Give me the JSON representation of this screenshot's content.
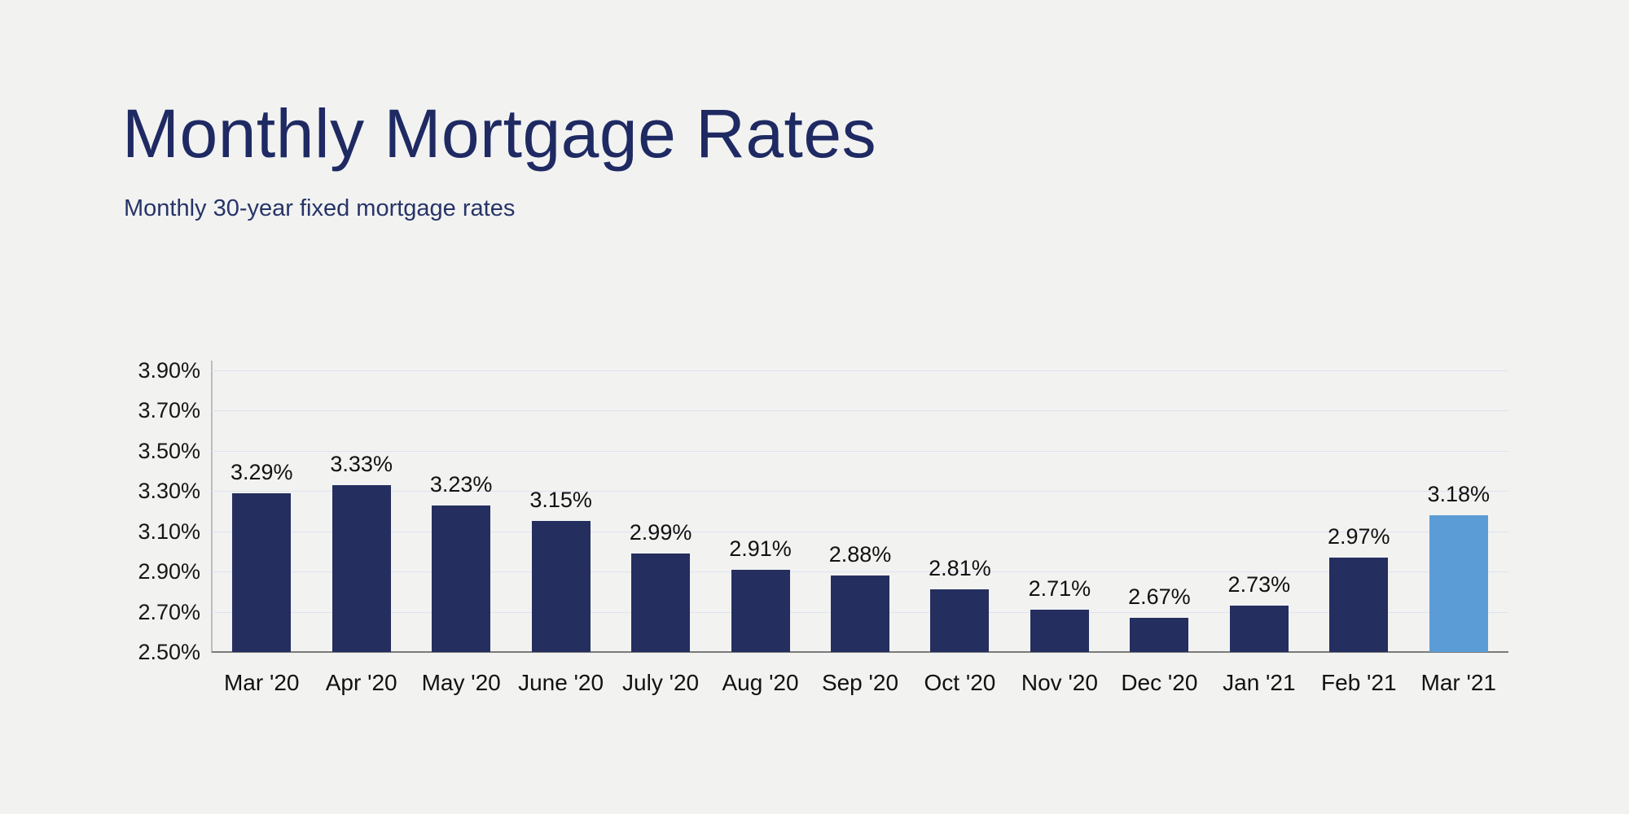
{
  "page": {
    "title": "Monthly Mortgage Rates",
    "subtitle": "Monthly 30-year fixed mortgage rates"
  },
  "chart_data": {
    "type": "bar",
    "title": "Monthly Mortgage Rates",
    "subtitle": "Monthly 30-year fixed mortgage rates",
    "categories": [
      "Mar '20",
      "Apr '20",
      "May '20",
      "June '20",
      "July '20",
      "Aug '20",
      "Sep '20",
      "Oct '20",
      "Nov '20",
      "Dec '20",
      "Jan '21",
      "Feb '21",
      "Mar '21"
    ],
    "values": [
      3.29,
      3.33,
      3.23,
      3.15,
      2.99,
      2.91,
      2.88,
      2.81,
      2.71,
      2.67,
      2.73,
      2.97,
      3.18
    ],
    "data_labels": [
      "3.29%",
      "3.33%",
      "3.23%",
      "3.15%",
      "2.99%",
      "2.91%",
      "2.88%",
      "2.81%",
      "2.71%",
      "2.67%",
      "2.73%",
      "2.97%",
      "3.18%"
    ],
    "xlabel": "",
    "ylabel": "",
    "ylim": [
      2.5,
      3.9
    ],
    "ytick_step": 0.2,
    "ytick_labels": [
      "2.50%",
      "2.70%",
      "2.90%",
      "3.10%",
      "3.30%",
      "3.50%",
      "3.70%",
      "3.90%"
    ],
    "grid": true,
    "legend": "none",
    "colors": {
      "background": "#f2f2f1",
      "title": "#1f2a63",
      "subtitle": "#273468",
      "bar": "#242e5f",
      "highlight_bar": "#5b9cd6",
      "gridline": "#dfe3ef",
      "axis_line": "#7a7a7a",
      "tick_text": "#161616"
    },
    "highlight_index": 12
  }
}
